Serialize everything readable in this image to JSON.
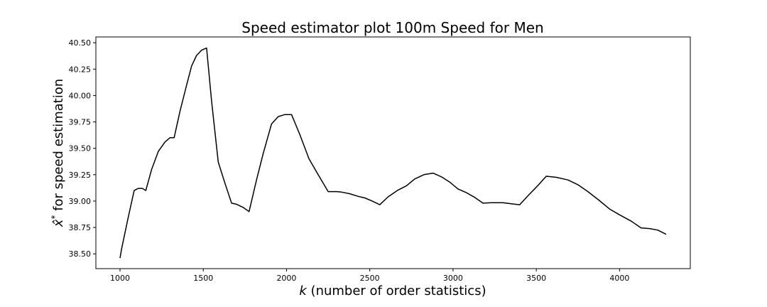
{
  "chart_data": {
    "type": "line",
    "title": "Speed estimator plot 100m Speed for Men",
    "xlabel": "k (number of order statistics)",
    "xlabel_italic_part": "k",
    "xlabel_rest": " (number of order statistics)",
    "ylabel": "x̂* for speed estimation",
    "ylabel_symbol": "x̂",
    "ylabel_sup": "*",
    "ylabel_rest": " for speed estimation",
    "xlim": [
      855,
      4425
    ],
    "ylim": [
      38.36,
      40.555
    ],
    "xticks": [
      1000,
      1500,
      2000,
      2500,
      3000,
      3500,
      4000
    ],
    "xtick_labels": [
      "1000",
      "1500",
      "2000",
      "2500",
      "3000",
      "3500",
      "4000"
    ],
    "yticks": [
      38.5,
      38.75,
      39.0,
      39.25,
      39.5,
      39.75,
      40.0,
      40.25,
      40.5
    ],
    "ytick_labels": [
      "38.50",
      "38.75",
      "39.00",
      "39.25",
      "39.50",
      "39.75",
      "40.00",
      "40.25",
      "40.50"
    ],
    "grid": false,
    "series": [
      {
        "color": "#000000",
        "x": [
          1000,
          1010,
          1050,
          1085,
          1110,
          1135,
          1155,
          1190,
          1230,
          1270,
          1300,
          1325,
          1360,
          1400,
          1430,
          1460,
          1490,
          1520,
          1550,
          1590,
          1630,
          1670,
          1700,
          1740,
          1775,
          1820,
          1860,
          1910,
          1950,
          1990,
          2030,
          2080,
          2135,
          2190,
          2250,
          2300,
          2330,
          2380,
          2430,
          2470,
          2515,
          2560,
          2610,
          2665,
          2720,
          2770,
          2825,
          2880,
          2930,
          2980,
          3030,
          3080,
          3130,
          3180,
          3230,
          3300,
          3350,
          3400,
          3450,
          3505,
          3560,
          3620,
          3690,
          3750,
          3810,
          3875,
          3940,
          4000,
          4070,
          4130,
          4180,
          4230,
          4280
        ],
        "y": [
          38.46,
          38.55,
          38.85,
          39.1,
          39.12,
          39.12,
          39.1,
          39.3,
          39.47,
          39.56,
          39.6,
          39.6,
          39.85,
          40.1,
          40.28,
          40.38,
          40.43,
          40.45,
          39.95,
          39.37,
          39.17,
          38.98,
          38.97,
          38.94,
          38.9,
          39.2,
          39.45,
          39.73,
          39.8,
          39.82,
          39.82,
          39.63,
          39.4,
          39.25,
          39.09,
          39.09,
          39.085,
          39.07,
          39.045,
          39.03,
          39.0,
          38.965,
          39.04,
          39.1,
          39.145,
          39.21,
          39.25,
          39.265,
          39.23,
          39.18,
          39.115,
          39.08,
          39.035,
          38.98,
          38.985,
          38.985,
          38.975,
          38.965,
          39.05,
          39.14,
          39.235,
          39.225,
          39.2,
          39.155,
          39.09,
          39.01,
          38.925,
          38.87,
          38.81,
          38.745,
          38.74,
          38.725,
          38.685
        ]
      }
    ]
  }
}
